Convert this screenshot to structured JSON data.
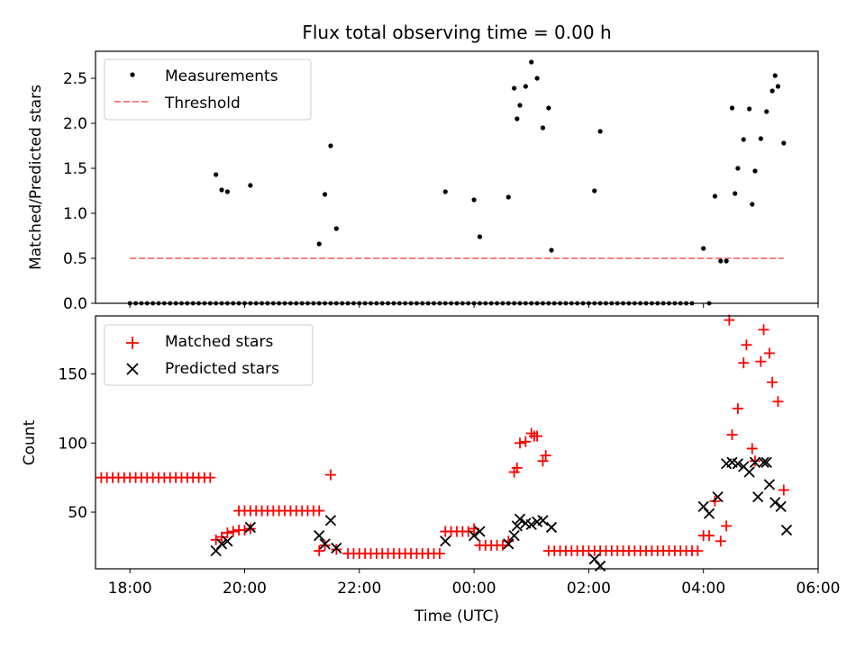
{
  "chart_data": [
    {
      "type": "scatter",
      "title": "Flux total observing time = 0.00 h",
      "xlabel": "",
      "ylabel": "Matched/Predicted stars",
      "xlim": [
        -6.6,
        6.0
      ],
      "ylim": [
        0,
        2.8
      ],
      "yticks": [
        0.0,
        0.5,
        1.0,
        1.5,
        2.0,
        2.5
      ],
      "ytick_labels": [
        "0.0",
        "0.5",
        "1.0",
        "1.5",
        "2.0",
        "2.5"
      ],
      "legend_position": "top-left",
      "legend": [
        "Measurements",
        "Threshold"
      ],
      "threshold": {
        "name": "Threshold",
        "y": 0.5,
        "x_range": [
          -6.0,
          5.4
        ],
        "color": "#ff8080"
      },
      "series": [
        {
          "name": "Measurements",
          "marker": "dot",
          "color": "#000000",
          "zeros_x": [
            -6.0,
            -5.9,
            -5.8,
            -5.7,
            -5.6,
            -5.5,
            -5.4,
            -5.3,
            -5.2,
            -5.1,
            -5.0,
            -4.9,
            -4.8,
            -4.7,
            -4.6,
            -4.5,
            -4.4,
            -4.3,
            -4.2,
            -4.1,
            -4.0,
            -3.9,
            -3.8,
            -3.7,
            -3.6,
            -3.5,
            -3.4,
            -3.3,
            -3.2,
            -3.1,
            -3.0,
            -2.9,
            -2.8,
            -2.7,
            -2.6,
            -2.5,
            -2.4,
            -2.3,
            -2.2,
            -2.1,
            -2.0,
            -1.9,
            -1.8,
            -1.7,
            -1.6,
            -1.5,
            -1.4,
            -1.3,
            -1.2,
            -1.1,
            -1.0,
            -0.9,
            -0.8,
            -0.7,
            -0.6,
            -0.5,
            -0.4,
            -0.3,
            -0.2,
            -0.1,
            0.0,
            0.1,
            0.2,
            0.3,
            0.4,
            0.5,
            0.6,
            0.7,
            0.8,
            0.9,
            1.0,
            1.1,
            1.2,
            1.3,
            1.4,
            1.5,
            1.6,
            1.7,
            1.8,
            1.9,
            2.0,
            2.1,
            2.2,
            2.3,
            2.4,
            2.5,
            2.6,
            2.7,
            2.8,
            2.9,
            3.0,
            3.1,
            3.2,
            3.3,
            3.4,
            3.5,
            3.6,
            3.7,
            3.8,
            4.1
          ],
          "points": [
            {
              "x": -4.5,
              "y": 1.43
            },
            {
              "x": -4.4,
              "y": 1.26
            },
            {
              "x": -4.3,
              "y": 1.24
            },
            {
              "x": -3.9,
              "y": 1.31
            },
            {
              "x": -2.7,
              "y": 0.66
            },
            {
              "x": -2.6,
              "y": 1.21
            },
            {
              "x": -2.5,
              "y": 1.75
            },
            {
              "x": -2.4,
              "y": 0.83
            },
            {
              "x": -0.5,
              "y": 1.24
            },
            {
              "x": 0.0,
              "y": 1.15
            },
            {
              "x": 0.1,
              "y": 0.74
            },
            {
              "x": 0.6,
              "y": 1.18
            },
            {
              "x": 0.7,
              "y": 2.39
            },
            {
              "x": 0.75,
              "y": 2.05
            },
            {
              "x": 0.8,
              "y": 2.2
            },
            {
              "x": 0.9,
              "y": 2.41
            },
            {
              "x": 1.0,
              "y": 2.68
            },
            {
              "x": 1.1,
              "y": 2.5
            },
            {
              "x": 1.2,
              "y": 1.95
            },
            {
              "x": 1.3,
              "y": 2.17
            },
            {
              "x": 1.35,
              "y": 0.59
            },
            {
              "x": 2.1,
              "y": 1.25
            },
            {
              "x": 2.2,
              "y": 1.91
            },
            {
              "x": 4.0,
              "y": 0.61
            },
            {
              "x": 4.2,
              "y": 1.19
            },
            {
              "x": 4.3,
              "y": 0.47
            },
            {
              "x": 4.4,
              "y": 0.47
            },
            {
              "x": 4.5,
              "y": 2.17
            },
            {
              "x": 4.55,
              "y": 1.22
            },
            {
              "x": 4.6,
              "y": 1.5
            },
            {
              "x": 4.7,
              "y": 1.82
            },
            {
              "x": 4.8,
              "y": 2.16
            },
            {
              "x": 4.85,
              "y": 1.1
            },
            {
              "x": 4.9,
              "y": 1.47
            },
            {
              "x": 5.0,
              "y": 1.83
            },
            {
              "x": 5.1,
              "y": 2.13
            },
            {
              "x": 5.2,
              "y": 2.36
            },
            {
              "x": 5.25,
              "y": 2.53
            },
            {
              "x": 5.3,
              "y": 2.41
            },
            {
              "x": 5.4,
              "y": 1.78
            }
          ]
        }
      ]
    },
    {
      "type": "scatter",
      "title": "",
      "xlabel": "Time (UTC)",
      "ylabel": "Count",
      "xlim": [
        -6.6,
        6.0
      ],
      "ylim": [
        9,
        192
      ],
      "yticks": [
        50,
        100,
        150
      ],
      "ytick_labels": [
        "50",
        "100",
        "150"
      ],
      "xticks": [
        -6,
        -4,
        -2,
        0,
        2,
        4,
        6
      ],
      "xtick_labels": [
        "18:00",
        "20:00",
        "22:00",
        "00:00",
        "02:00",
        "04:00",
        "06:00"
      ],
      "legend_position": "top-left",
      "legend": [
        "Matched stars",
        "Predicted stars"
      ],
      "series": [
        {
          "name": "Matched stars",
          "marker": "plus",
          "color": "#ff0000",
          "runs": [
            {
              "from": -6.7,
              "to": -4.6,
              "step": 0.1,
              "y": 75
            },
            {
              "from": -4.1,
              "to": -2.7,
              "step": 0.1,
              "y": 51
            },
            {
              "from": -2.2,
              "to": -0.6,
              "step": 0.1,
              "y": 20
            },
            {
              "from": 1.3,
              "to": 3.9,
              "step": 0.1,
              "y": 22
            }
          ],
          "points": [
            {
              "x": -4.5,
              "y": 30
            },
            {
              "x": -4.4,
              "y": 32
            },
            {
              "x": -4.3,
              "y": 35
            },
            {
              "x": -4.2,
              "y": 36
            },
            {
              "x": -4.1,
              "y": 37
            },
            {
              "x": -4.0,
              "y": 37
            },
            {
              "x": -3.9,
              "y": 38
            },
            {
              "x": -2.7,
              "y": 22
            },
            {
              "x": -2.6,
              "y": 26
            },
            {
              "x": -2.5,
              "y": 77
            },
            {
              "x": -2.4,
              "y": 23
            },
            {
              "x": -0.5,
              "y": 36
            },
            {
              "x": -0.4,
              "y": 36
            },
            {
              "x": -0.3,
              "y": 36
            },
            {
              "x": -0.2,
              "y": 36
            },
            {
              "x": -0.1,
              "y": 36
            },
            {
              "x": 0.0,
              "y": 38
            },
            {
              "x": 0.1,
              "y": 26
            },
            {
              "x": 0.2,
              "y": 26
            },
            {
              "x": 0.3,
              "y": 26
            },
            {
              "x": 0.4,
              "y": 26
            },
            {
              "x": 0.5,
              "y": 26
            },
            {
              "x": 0.6,
              "y": 29
            },
            {
              "x": 0.7,
              "y": 79
            },
            {
              "x": 0.75,
              "y": 82
            },
            {
              "x": 0.8,
              "y": 100
            },
            {
              "x": 0.9,
              "y": 101
            },
            {
              "x": 1.0,
              "y": 107
            },
            {
              "x": 1.05,
              "y": 105
            },
            {
              "x": 1.1,
              "y": 105
            },
            {
              "x": 1.2,
              "y": 87
            },
            {
              "x": 1.25,
              "y": 91
            },
            {
              "x": 4.0,
              "y": 33
            },
            {
              "x": 4.1,
              "y": 33
            },
            {
              "x": 4.2,
              "y": 58
            },
            {
              "x": 4.3,
              "y": 29
            },
            {
              "x": 4.4,
              "y": 40
            },
            {
              "x": 4.45,
              "y": 189
            },
            {
              "x": 4.5,
              "y": 106
            },
            {
              "x": 4.6,
              "y": 125
            },
            {
              "x": 4.7,
              "y": 158
            },
            {
              "x": 4.75,
              "y": 171
            },
            {
              "x": 4.85,
              "y": 96
            },
            {
              "x": 4.9,
              "y": 87
            },
            {
              "x": 5.0,
              "y": 159
            },
            {
              "x": 5.05,
              "y": 182
            },
            {
              "x": 5.15,
              "y": 165
            },
            {
              "x": 5.2,
              "y": 144
            },
            {
              "x": 5.3,
              "y": 130
            },
            {
              "x": 5.4,
              "y": 66
            }
          ]
        },
        {
          "name": "Predicted stars",
          "marker": "x",
          "color": "#000000",
          "points": [
            {
              "x": -4.5,
              "y": 22
            },
            {
              "x": -4.4,
              "y": 27
            },
            {
              "x": -4.3,
              "y": 29
            },
            {
              "x": -3.9,
              "y": 39
            },
            {
              "x": -2.7,
              "y": 33
            },
            {
              "x": -2.6,
              "y": 27
            },
            {
              "x": -2.5,
              "y": 44
            },
            {
              "x": -2.4,
              "y": 24
            },
            {
              "x": -0.5,
              "y": 29
            },
            {
              "x": 0.0,
              "y": 33
            },
            {
              "x": 0.1,
              "y": 36
            },
            {
              "x": 0.6,
              "y": 27
            },
            {
              "x": 0.7,
              "y": 33
            },
            {
              "x": 0.75,
              "y": 40
            },
            {
              "x": 0.8,
              "y": 45
            },
            {
              "x": 0.9,
              "y": 42
            },
            {
              "x": 1.0,
              "y": 41
            },
            {
              "x": 1.1,
              "y": 43
            },
            {
              "x": 1.2,
              "y": 44
            },
            {
              "x": 1.35,
              "y": 39
            },
            {
              "x": 2.1,
              "y": 16
            },
            {
              "x": 2.2,
              "y": 11
            },
            {
              "x": 4.0,
              "y": 54
            },
            {
              "x": 4.1,
              "y": 49
            },
            {
              "x": 4.25,
              "y": 61
            },
            {
              "x": 4.4,
              "y": 85
            },
            {
              "x": 4.5,
              "y": 86
            },
            {
              "x": 4.6,
              "y": 85
            },
            {
              "x": 4.7,
              "y": 83
            },
            {
              "x": 4.8,
              "y": 79
            },
            {
              "x": 4.9,
              "y": 86
            },
            {
              "x": 4.95,
              "y": 61
            },
            {
              "x": 5.05,
              "y": 86
            },
            {
              "x": 5.1,
              "y": 86
            },
            {
              "x": 5.15,
              "y": 70
            },
            {
              "x": 5.25,
              "y": 57
            },
            {
              "x": 5.35,
              "y": 54
            },
            {
              "x": 5.45,
              "y": 37
            }
          ]
        }
      ]
    }
  ]
}
